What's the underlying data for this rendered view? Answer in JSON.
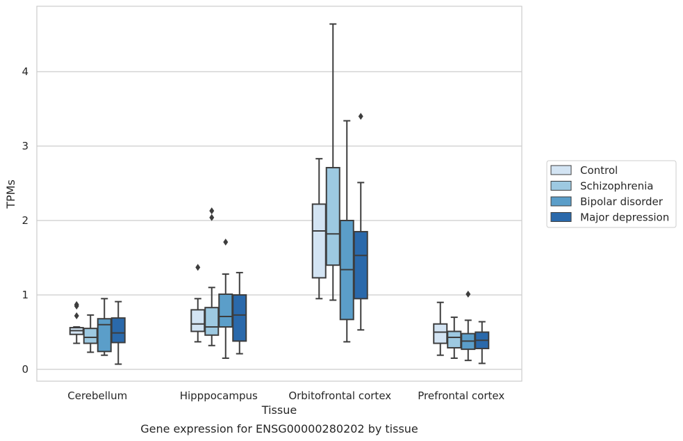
{
  "chart_data": {
    "type": "boxplot",
    "title": "",
    "caption": "Gene expression for ENSG00000280202 by tissue",
    "xlabel": "Tissue",
    "ylabel": "TPMs",
    "ylim": [
      -0.15,
      4.9
    ],
    "yticks": [
      0,
      1,
      2,
      3,
      4
    ],
    "grid": "horizontal",
    "legend_position": "right",
    "categories": [
      "Cerebellum",
      "Hipppocampus",
      "Orbitofrontal cortex",
      "Prefrontal cortex"
    ],
    "series": [
      {
        "name": "Control",
        "color": "#d3e4f3",
        "boxes": [
          {
            "whisker_low": 0.35,
            "q1": 0.47,
            "median": 0.52,
            "q3": 0.56,
            "whisker_high": 0.57,
            "outliers": [
              0.72,
              0.85,
              0.87
            ]
          },
          {
            "whisker_low": 0.37,
            "q1": 0.51,
            "median": 0.61,
            "q3": 0.8,
            "whisker_high": 0.95,
            "outliers": [
              1.37
            ]
          },
          {
            "whisker_low": 0.95,
            "q1": 1.23,
            "median": 1.86,
            "q3": 2.22,
            "whisker_high": 2.83,
            "outliers": []
          },
          {
            "whisker_low": 0.19,
            "q1": 0.35,
            "median": 0.5,
            "q3": 0.61,
            "whisker_high": 0.9,
            "outliers": []
          }
        ]
      },
      {
        "name": "Schizophrenia",
        "color": "#9dc9e1",
        "boxes": [
          {
            "whisker_low": 0.23,
            "q1": 0.35,
            "median": 0.43,
            "q3": 0.55,
            "whisker_high": 0.73,
            "outliers": []
          },
          {
            "whisker_low": 0.32,
            "q1": 0.46,
            "median": 0.57,
            "q3": 0.83,
            "whisker_high": 1.1,
            "outliers": [
              2.04,
              2.13
            ]
          },
          {
            "whisker_low": 0.93,
            "q1": 1.4,
            "median": 1.82,
            "q3": 2.71,
            "whisker_high": 4.64,
            "outliers": []
          },
          {
            "whisker_low": 0.15,
            "q1": 0.29,
            "median": 0.43,
            "q3": 0.51,
            "whisker_high": 0.7,
            "outliers": []
          }
        ]
      },
      {
        "name": "Bipolar disorder",
        "color": "#5b9ec9",
        "boxes": [
          {
            "whisker_low": 0.19,
            "q1": 0.24,
            "median": 0.6,
            "q3": 0.68,
            "whisker_high": 0.95,
            "outliers": []
          },
          {
            "whisker_low": 0.15,
            "q1": 0.57,
            "median": 0.71,
            "q3": 1.01,
            "whisker_high": 1.28,
            "outliers": [
              1.71
            ]
          },
          {
            "whisker_low": 0.37,
            "q1": 0.67,
            "median": 1.34,
            "q3": 2.0,
            "whisker_high": 3.34,
            "outliers": []
          },
          {
            "whisker_low": 0.12,
            "q1": 0.27,
            "median": 0.38,
            "q3": 0.48,
            "whisker_high": 0.66,
            "outliers": [
              1.01
            ]
          }
        ]
      },
      {
        "name": "Major depression",
        "color": "#2a69ab",
        "boxes": [
          {
            "whisker_low": 0.07,
            "q1": 0.36,
            "median": 0.49,
            "q3": 0.69,
            "whisker_high": 0.91,
            "outliers": []
          },
          {
            "whisker_low": 0.21,
            "q1": 0.38,
            "median": 0.73,
            "q3": 1.0,
            "whisker_high": 1.3,
            "outliers": []
          },
          {
            "whisker_low": 0.53,
            "q1": 0.95,
            "median": 1.53,
            "q3": 1.85,
            "whisker_high": 2.51,
            "outliers": [
              3.4
            ]
          },
          {
            "whisker_low": 0.08,
            "q1": 0.28,
            "median": 0.39,
            "q3": 0.5,
            "whisker_high": 0.64,
            "outliers": []
          }
        ]
      }
    ]
  }
}
